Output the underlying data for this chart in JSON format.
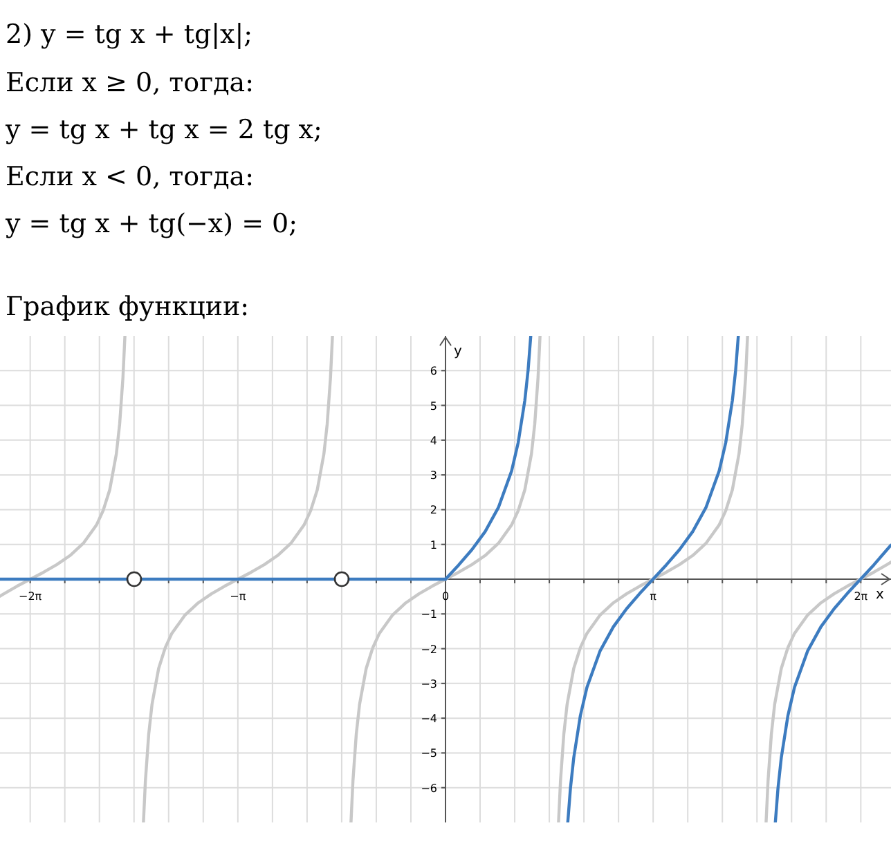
{
  "chart_data": {
    "type": "line",
    "title": "2) y = tg x + tg|x|;",
    "annotations": [
      "Если x ≥ 0, тогда:",
      "y = tg x + tg x = 2 tg x;",
      "Если x < 0, тогда:",
      "y = tg x + tg(−x) = 0;",
      "График функции:"
    ],
    "xlabel": "x",
    "ylabel": "y",
    "xlim": [
      -6.74,
      6.74
    ],
    "ylim": [
      -7,
      7
    ],
    "xticks": [
      {
        "value": -6.2832,
        "label": "−2π"
      },
      {
        "value": -5.7596,
        "label": null
      },
      {
        "value": -5.236,
        "label": null
      },
      {
        "value": -4.7124,
        "label": null
      },
      {
        "value": -4.1888,
        "label": null
      },
      {
        "value": -3.6652,
        "label": null
      },
      {
        "value": -3.1416,
        "label": "−π"
      },
      {
        "value": -2.618,
        "label": null
      },
      {
        "value": -2.0944,
        "label": null
      },
      {
        "value": -1.5708,
        "label": null
      },
      {
        "value": -1.0472,
        "label": null
      },
      {
        "value": -0.5236,
        "label": null
      },
      {
        "value": 0,
        "label": "0"
      },
      {
        "value": 0.5236,
        "label": null
      },
      {
        "value": 1.0472,
        "label": null
      },
      {
        "value": 1.5708,
        "label": null
      },
      {
        "value": 2.0944,
        "label": null
      },
      {
        "value": 2.618,
        "label": null
      },
      {
        "value": 3.1416,
        "label": "π"
      },
      {
        "value": 3.6652,
        "label": null
      },
      {
        "value": 4.1888,
        "label": null
      },
      {
        "value": 4.7124,
        "label": null
      },
      {
        "value": 5.236,
        "label": null
      },
      {
        "value": 5.7596,
        "label": null
      },
      {
        "value": 6.2832,
        "label": "2π"
      }
    ],
    "yticks": [
      -6,
      -5,
      -4,
      -3,
      -2,
      -1,
      1,
      2,
      3,
      4,
      5,
      6
    ],
    "grid": true,
    "series": [
      {
        "color": "#c8c8c8",
        "x": [
          -6.74,
          -6.68,
          -6.48,
          -6.28,
          -6.08,
          -5.88,
          -5.68,
          -5.48,
          -5.28,
          -5.18,
          -5.08,
          -4.98,
          -4.93,
          -4.88,
          -4.85
        ],
        "values": [
          -0.49,
          -0.42,
          -0.2,
          0,
          0.2,
          0.42,
          0.68,
          1.03,
          1.56,
          1.97,
          2.57,
          3.6,
          4.46,
          5.8,
          7
        ]
      },
      {
        "color": "#c8c8c8",
        "x": [
          -4.57,
          -4.54,
          -4.49,
          -4.44,
          -4.34,
          -4.24,
          -4.14,
          -3.94,
          -3.74,
          -3.54,
          -3.34,
          -3.14,
          -2.94,
          -2.74,
          -2.54,
          -2.34,
          -2.14,
          -2.04,
          -1.94,
          -1.84,
          -1.79,
          -1.74,
          -1.71
        ],
        "values": [
          -7,
          -5.8,
          -4.46,
          -3.6,
          -2.57,
          -1.97,
          -1.56,
          -1.03,
          -0.68,
          -0.42,
          -0.2,
          0,
          0.2,
          0.42,
          0.68,
          1.03,
          1.56,
          1.97,
          2.57,
          3.6,
          4.46,
          5.8,
          7
        ]
      },
      {
        "color": "#c8c8c8",
        "x": [
          -1.43,
          -1.4,
          -1.35,
          -1.3,
          -1.2,
          -1.1,
          -1.0,
          -0.8,
          -0.6,
          -0.4,
          -0.2,
          0,
          0.2,
          0.4,
          0.6,
          0.8,
          1.0,
          1.1,
          1.2,
          1.3,
          1.35,
          1.4,
          1.43
        ],
        "values": [
          -7,
          -5.8,
          -4.46,
          -3.6,
          -2.57,
          -1.97,
          -1.56,
          -1.03,
          -0.68,
          -0.42,
          -0.2,
          0,
          0.2,
          0.42,
          0.68,
          1.03,
          1.56,
          1.97,
          2.57,
          3.6,
          4.46,
          5.8,
          7
        ]
      },
      {
        "color": "#c8c8c8",
        "x": [
          1.71,
          1.74,
          1.79,
          1.84,
          1.94,
          2.04,
          2.14,
          2.34,
          2.54,
          2.74,
          2.94,
          3.14,
          3.34,
          3.54,
          3.74,
          3.94,
          4.14,
          4.24,
          4.34,
          4.44,
          4.49,
          4.54,
          4.57
        ],
        "values": [
          -7,
          -5.8,
          -4.46,
          -3.6,
          -2.57,
          -1.97,
          -1.56,
          -1.03,
          -0.68,
          -0.42,
          -0.2,
          0,
          0.2,
          0.42,
          0.68,
          1.03,
          1.56,
          1.97,
          2.57,
          3.6,
          4.46,
          5.8,
          7
        ]
      },
      {
        "color": "#c8c8c8",
        "x": [
          4.85,
          4.88,
          4.93,
          4.98,
          5.08,
          5.18,
          5.28,
          5.48,
          5.68,
          5.88,
          6.08,
          6.28,
          6.48,
          6.68,
          6.74
        ],
        "values": [
          -7,
          -5.8,
          -4.46,
          -3.6,
          -2.57,
          -1.97,
          -1.56,
          -1.03,
          -0.68,
          -0.42,
          -0.2,
          0,
          0.2,
          0.42,
          0.49
        ]
      },
      {
        "color": "#3d7cc0",
        "x": [
          -6.74,
          -4.71,
          -1.57,
          0
        ],
        "values": [
          0,
          0,
          0,
          0
        ]
      },
      {
        "color": "#3d7cc0",
        "x": [
          0,
          0.2,
          0.4,
          0.6,
          0.8,
          1.0,
          1.1,
          1.2,
          1.25,
          1.29
        ],
        "values": [
          0,
          0.41,
          0.85,
          1.37,
          2.06,
          3.11,
          3.93,
          5.14,
          6.02,
          7
        ]
      },
      {
        "color": "#3d7cc0",
        "x": [
          1.85,
          1.89,
          1.94,
          2.04,
          2.14,
          2.34,
          2.54,
          2.74,
          2.94,
          3.14,
          3.34,
          3.54,
          3.74,
          3.94,
          4.14,
          4.24,
          4.34,
          4.39,
          4.43
        ],
        "values": [
          -7,
          -6.02,
          -5.14,
          -3.93,
          -3.11,
          -2.06,
          -1.37,
          -0.85,
          -0.41,
          0,
          0.41,
          0.85,
          1.37,
          2.06,
          3.11,
          3.93,
          5.14,
          6.02,
          7
        ]
      },
      {
        "color": "#3d7cc0",
        "x": [
          4.99,
          5.03,
          5.08,
          5.18,
          5.28,
          5.48,
          5.68,
          5.88,
          6.08,
          6.28,
          6.48,
          6.68,
          6.74
        ],
        "values": [
          -7,
          -6.02,
          -5.14,
          -3.93,
          -3.11,
          -2.06,
          -1.37,
          -0.85,
          -0.41,
          0,
          0.41,
          0.85,
          0.98
        ]
      },
      {
        "type": "scatter",
        "marker": "circle",
        "color": "#333333",
        "x": [
          -4.71,
          -1.57
        ],
        "values": [
          0,
          0
        ]
      }
    ]
  }
}
